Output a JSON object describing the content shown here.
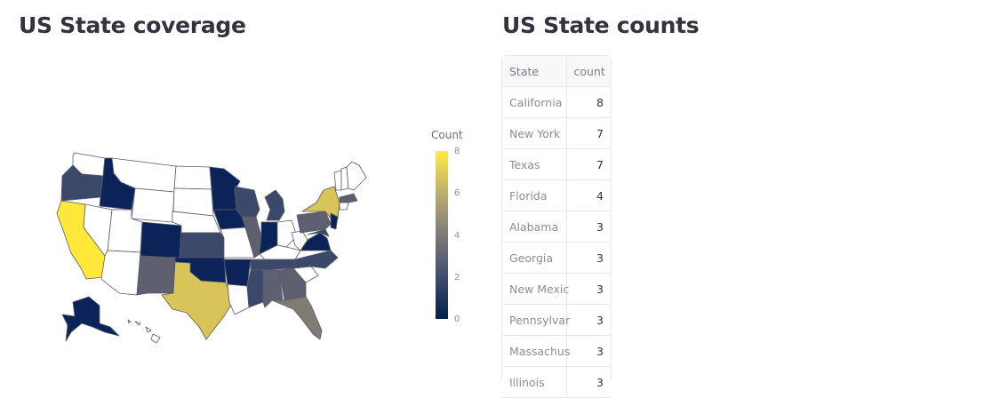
{
  "left_panel": {
    "title": "US State coverage"
  },
  "right_panel": {
    "title": "US State counts"
  },
  "colorbar": {
    "title": "Count",
    "ticks": [
      "8",
      "6",
      "4",
      "2",
      "0"
    ],
    "colors": [
      "#00204c",
      "#414d6b",
      "#7c7b78",
      "#bcae6e",
      "#ffea46"
    ]
  },
  "map_colors": {
    "navy": "#0b2358",
    "slate": "#3b4869",
    "gray": "#5d6070",
    "olive": "#7f7c74",
    "gold": "#d9c557",
    "yellow": "#ffe83a",
    "white": "#ffffff"
  },
  "table": {
    "headers": {
      "state": "State",
      "count": "count"
    },
    "rows": [
      {
        "state": "California",
        "count": "8"
      },
      {
        "state": "New York",
        "count": "7"
      },
      {
        "state": "Texas",
        "count": "7"
      },
      {
        "state": "Florida",
        "count": "4"
      },
      {
        "state": "Alabama",
        "count": "3"
      },
      {
        "state": "Georgia",
        "count": "3"
      },
      {
        "state": "New Mexic",
        "count": "3"
      },
      {
        "state": "Pennsylvar",
        "count": "3"
      },
      {
        "state": "Massachus",
        "count": "3"
      },
      {
        "state": "Illinois",
        "count": "3"
      }
    ]
  }
}
